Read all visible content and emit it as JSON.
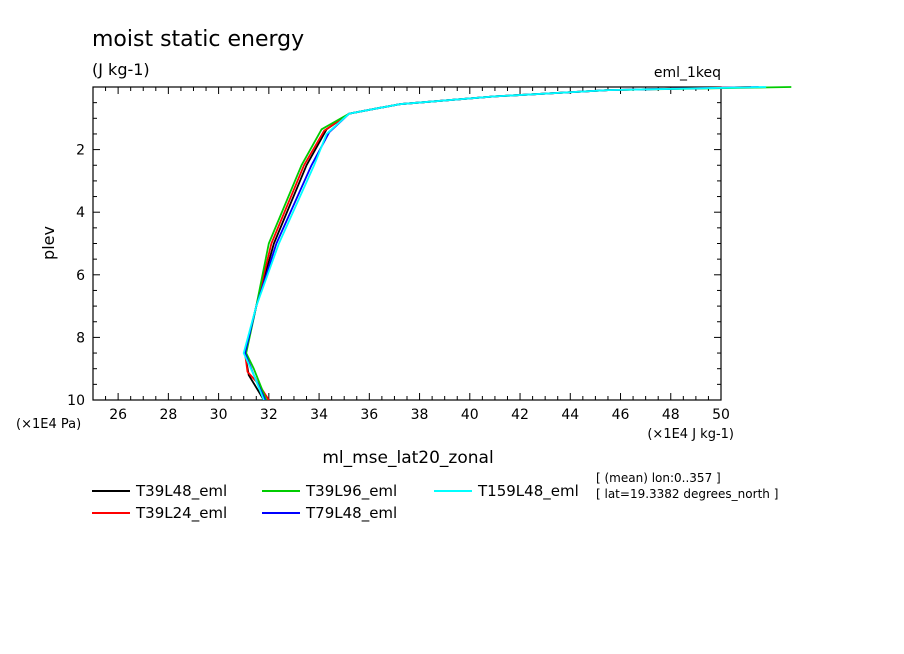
{
  "chart_data": {
    "type": "line",
    "title": "moist static energy",
    "units_label": "(J kg-1)",
    "top_right_label": "eml_1keq",
    "xlabel": "ml_mse_lat20_zonal",
    "ylabel": "plev",
    "x_unit_label": "(×1E4 J kg-1)",
    "y_unit_label": "(×1E4 Pa)",
    "xlim": [
      25,
      50
    ],
    "ylim": [
      10,
      0
    ],
    "x_ticks": [
      "26",
      "28",
      "30",
      "32",
      "34",
      "36",
      "38",
      "40",
      "42",
      "44",
      "46",
      "48",
      "50"
    ],
    "y_ticks": [
      "2",
      "4",
      "6",
      "8",
      "10"
    ],
    "annotations": [
      "[ (mean) lon:0..357 ]",
      "[ lat=19.3382 degrees_north ]"
    ],
    "series": [
      {
        "name": "T39L48_eml",
        "color": "#000000",
        "points": [
          [
            51.2,
            0
          ],
          [
            45.5,
            0.1
          ],
          [
            41.0,
            0.3
          ],
          [
            37.2,
            0.55
          ],
          [
            35.2,
            0.85
          ],
          [
            34.3,
            1.35
          ],
          [
            33.5,
            2.5
          ],
          [
            32.2,
            5.0
          ],
          [
            31.5,
            7.0
          ],
          [
            31.05,
            8.5
          ],
          [
            31.2,
            9.2
          ],
          [
            31.8,
            10.0
          ]
        ]
      },
      {
        "name": "T39L24_eml",
        "color": "#ff0000",
        "points": [
          [
            51.2,
            0
          ],
          [
            45.5,
            0.1
          ],
          [
            41.0,
            0.3
          ],
          [
            37.2,
            0.55
          ],
          [
            35.2,
            0.85
          ],
          [
            34.2,
            1.4
          ],
          [
            33.4,
            2.5
          ],
          [
            32.1,
            5.0
          ],
          [
            31.5,
            7.0
          ],
          [
            31.05,
            8.5
          ],
          [
            31.15,
            9.1
          ],
          [
            31.6,
            9.5
          ],
          [
            32.0,
            10.0
          ]
        ]
      },
      {
        "name": "T39L96_eml",
        "color": "#00cc00",
        "points": [
          [
            52.8,
            0
          ],
          [
            45.5,
            0.1
          ],
          [
            41.0,
            0.3
          ],
          [
            37.2,
            0.55
          ],
          [
            35.2,
            0.85
          ],
          [
            34.1,
            1.35
          ],
          [
            33.3,
            2.5
          ],
          [
            32.0,
            5.0
          ],
          [
            31.5,
            7.0
          ],
          [
            31.1,
            8.5
          ],
          [
            31.4,
            9.0
          ],
          [
            31.9,
            10.0
          ]
        ]
      },
      {
        "name": "T79L48_eml",
        "color": "#0000ff",
        "points": [
          [
            51.5,
            0
          ],
          [
            45.5,
            0.1
          ],
          [
            41.0,
            0.3
          ],
          [
            37.2,
            0.55
          ],
          [
            35.2,
            0.85
          ],
          [
            34.4,
            1.45
          ],
          [
            33.7,
            2.5
          ],
          [
            32.3,
            5.0
          ],
          [
            31.5,
            7.0
          ],
          [
            31.05,
            8.5
          ],
          [
            31.4,
            9.2
          ],
          [
            31.85,
            10.0
          ]
        ]
      },
      {
        "name": "T159L48_eml",
        "color": "#00ffff",
        "points": [
          [
            51.8,
            0
          ],
          [
            45.5,
            0.1
          ],
          [
            41.0,
            0.3
          ],
          [
            37.2,
            0.55
          ],
          [
            35.2,
            0.85
          ],
          [
            34.3,
            1.5
          ],
          [
            33.8,
            2.5
          ],
          [
            32.4,
            5.0
          ],
          [
            31.5,
            7.0
          ],
          [
            31.0,
            8.5
          ],
          [
            31.4,
            9.2
          ],
          [
            31.8,
            10.0
          ]
        ]
      }
    ]
  }
}
